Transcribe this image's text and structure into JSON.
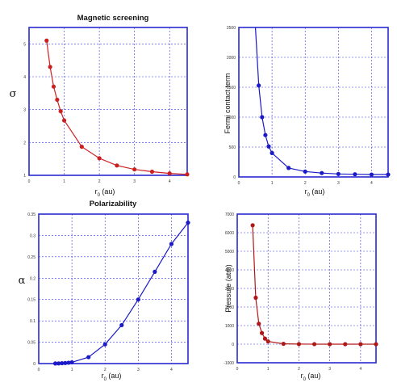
{
  "chart_data": [
    {
      "type": "line",
      "title": "Magnetic screening",
      "ylabel": "σ",
      "xlabel": {
        "r": "r",
        "sub": "0",
        "rest": " (au)"
      },
      "xlim": [
        0,
        4.5
      ],
      "ylim": [
        1,
        5.5
      ],
      "xticks": [
        0,
        1,
        2,
        3,
        4
      ],
      "yticks": [
        1,
        2,
        3,
        4,
        5
      ],
      "grid": true,
      "color": "#cc2020",
      "series": [
        {
          "x": [
            0.5,
            0.6,
            0.7,
            0.8,
            0.9,
            1.0,
            1.5,
            2.0,
            2.5,
            3.0,
            3.5,
            4.0,
            4.5
          ],
          "y": [
            5.1,
            4.3,
            3.7,
            3.3,
            2.95,
            2.67,
            1.87,
            1.52,
            1.3,
            1.18,
            1.11,
            1.06,
            1.03
          ]
        }
      ]
    },
    {
      "type": "line",
      "title": "",
      "ylabel": "Fermi contact term",
      "xlabel": {
        "r": "r",
        "sub": "0",
        "rest": " (au)"
      },
      "xlim": [
        0,
        4.5
      ],
      "ylim": [
        0,
        2500
      ],
      "xticks": [
        0,
        1,
        2,
        3,
        4
      ],
      "yticks": [
        0,
        500,
        1000,
        1500,
        2000,
        2500
      ],
      "grid": true,
      "color": "#1a1ac8",
      "curve_start": {
        "x": 0.5,
        "y": 2500
      },
      "series": [
        {
          "x": [
            0.6,
            0.7,
            0.8,
            0.9,
            1.0,
            1.5,
            2.0,
            2.5,
            3.0,
            3.5,
            4.0,
            4.5
          ],
          "y": [
            1530,
            1000,
            700,
            510,
            400,
            150,
            90,
            65,
            50,
            45,
            40,
            40
          ]
        }
      ]
    },
    {
      "type": "line",
      "title": "Polarizability",
      "ylabel": "α",
      "xlabel": {
        "r": "r",
        "sub": "0",
        "rest": " (au)"
      },
      "xlim": [
        0,
        4.5
      ],
      "ylim": [
        0,
        0.35
      ],
      "xticks": [
        0,
        1,
        2,
        3,
        4
      ],
      "yticks": [
        "0",
        "0.05",
        "0.1",
        "0.15",
        "0.2",
        "0.25",
        "0.3",
        "0.35"
      ],
      "ytick_values": [
        0,
        0.05,
        0.1,
        0.15,
        0.2,
        0.25,
        0.3,
        0.35
      ],
      "grid": true,
      "color": "#1a1ac8",
      "series": [
        {
          "x": [
            0.5,
            0.6,
            0.7,
            0.8,
            0.9,
            1.0,
            1.5,
            2.0,
            2.5,
            3.0,
            3.5,
            4.0,
            4.5
          ],
          "y": [
            0.0002,
            0.0004,
            0.0008,
            0.0013,
            0.002,
            0.003,
            0.015,
            0.045,
            0.09,
            0.15,
            0.215,
            0.28,
            0.33
          ]
        }
      ]
    },
    {
      "type": "line",
      "title": "",
      "ylabel": "Pressure (atm)",
      "xlabel": {
        "r": "r",
        "sub": "0",
        "rest": " (au)"
      },
      "xlim": [
        0,
        4.5
      ],
      "ylim": [
        -1000,
        7000
      ],
      "xticks": [
        0,
        1,
        2,
        3,
        4
      ],
      "yticks": [
        -1000,
        0,
        1000,
        2000,
        3000,
        4000,
        5000,
        6000,
        7000
      ],
      "grid": true,
      "color": "#b01818",
      "series": [
        {
          "x": [
            0.5,
            0.6,
            0.7,
            0.8,
            0.9,
            1.0,
            1.5,
            2.0,
            2.5,
            3.0,
            3.5,
            4.0,
            4.5
          ],
          "y": [
            6400,
            2500,
            1100,
            600,
            300,
            150,
            20,
            5,
            2,
            1,
            0,
            0,
            0
          ]
        }
      ]
    }
  ]
}
